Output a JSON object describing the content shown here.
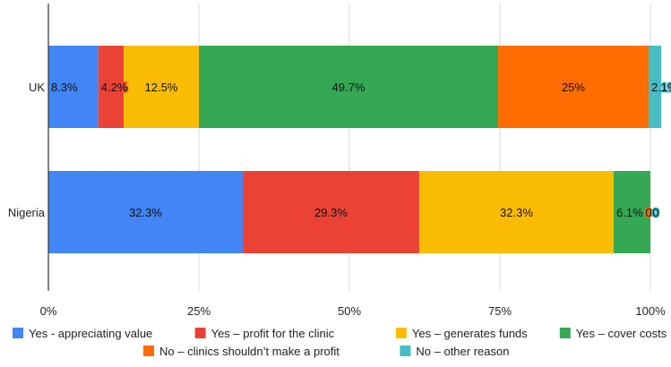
{
  "chart_data": {
    "type": "bar",
    "orientation": "horizontal",
    "stacked": true,
    "percent_stacked": true,
    "categories": [
      "UK",
      "Nigeria"
    ],
    "series": [
      {
        "name": "Yes - appreciating value",
        "values": [
          8.3,
          32.3
        ],
        "labels": [
          "8.3%",
          "32.3%"
        ],
        "color": "#4285F4"
      },
      {
        "name": "Yes – profit for the clinic",
        "values": [
          4.2,
          29.3
        ],
        "labels": [
          "4.2%",
          "29.3%"
        ],
        "color": "#EA4335"
      },
      {
        "name": "Yes – generates funds",
        "values": [
          12.5,
          32.3
        ],
        "labels": [
          "12.5%",
          "32.3%"
        ],
        "color": "#FBBC04"
      },
      {
        "name": "Yes – cover costs",
        "values": [
          49.7,
          6.1
        ],
        "labels": [
          "49.7%",
          "6.1%"
        ],
        "color": "#34A853"
      },
      {
        "name": "No – clinics shouldn’t make a profit",
        "values": [
          25,
          0
        ],
        "labels": [
          "25%",
          "0"
        ],
        "color": "#FF6D01"
      },
      {
        "name": "No – other reason",
        "values": [
          2.1,
          0
        ],
        "labels": [
          "2.1%",
          "0"
        ],
        "color": "#46BDC6"
      }
    ],
    "x_ticks": [
      "0%",
      "25%",
      "50%",
      "75%",
      "100%"
    ],
    "xlim": [
      0,
      100
    ],
    "grid": true,
    "legend_position": "bottom"
  }
}
